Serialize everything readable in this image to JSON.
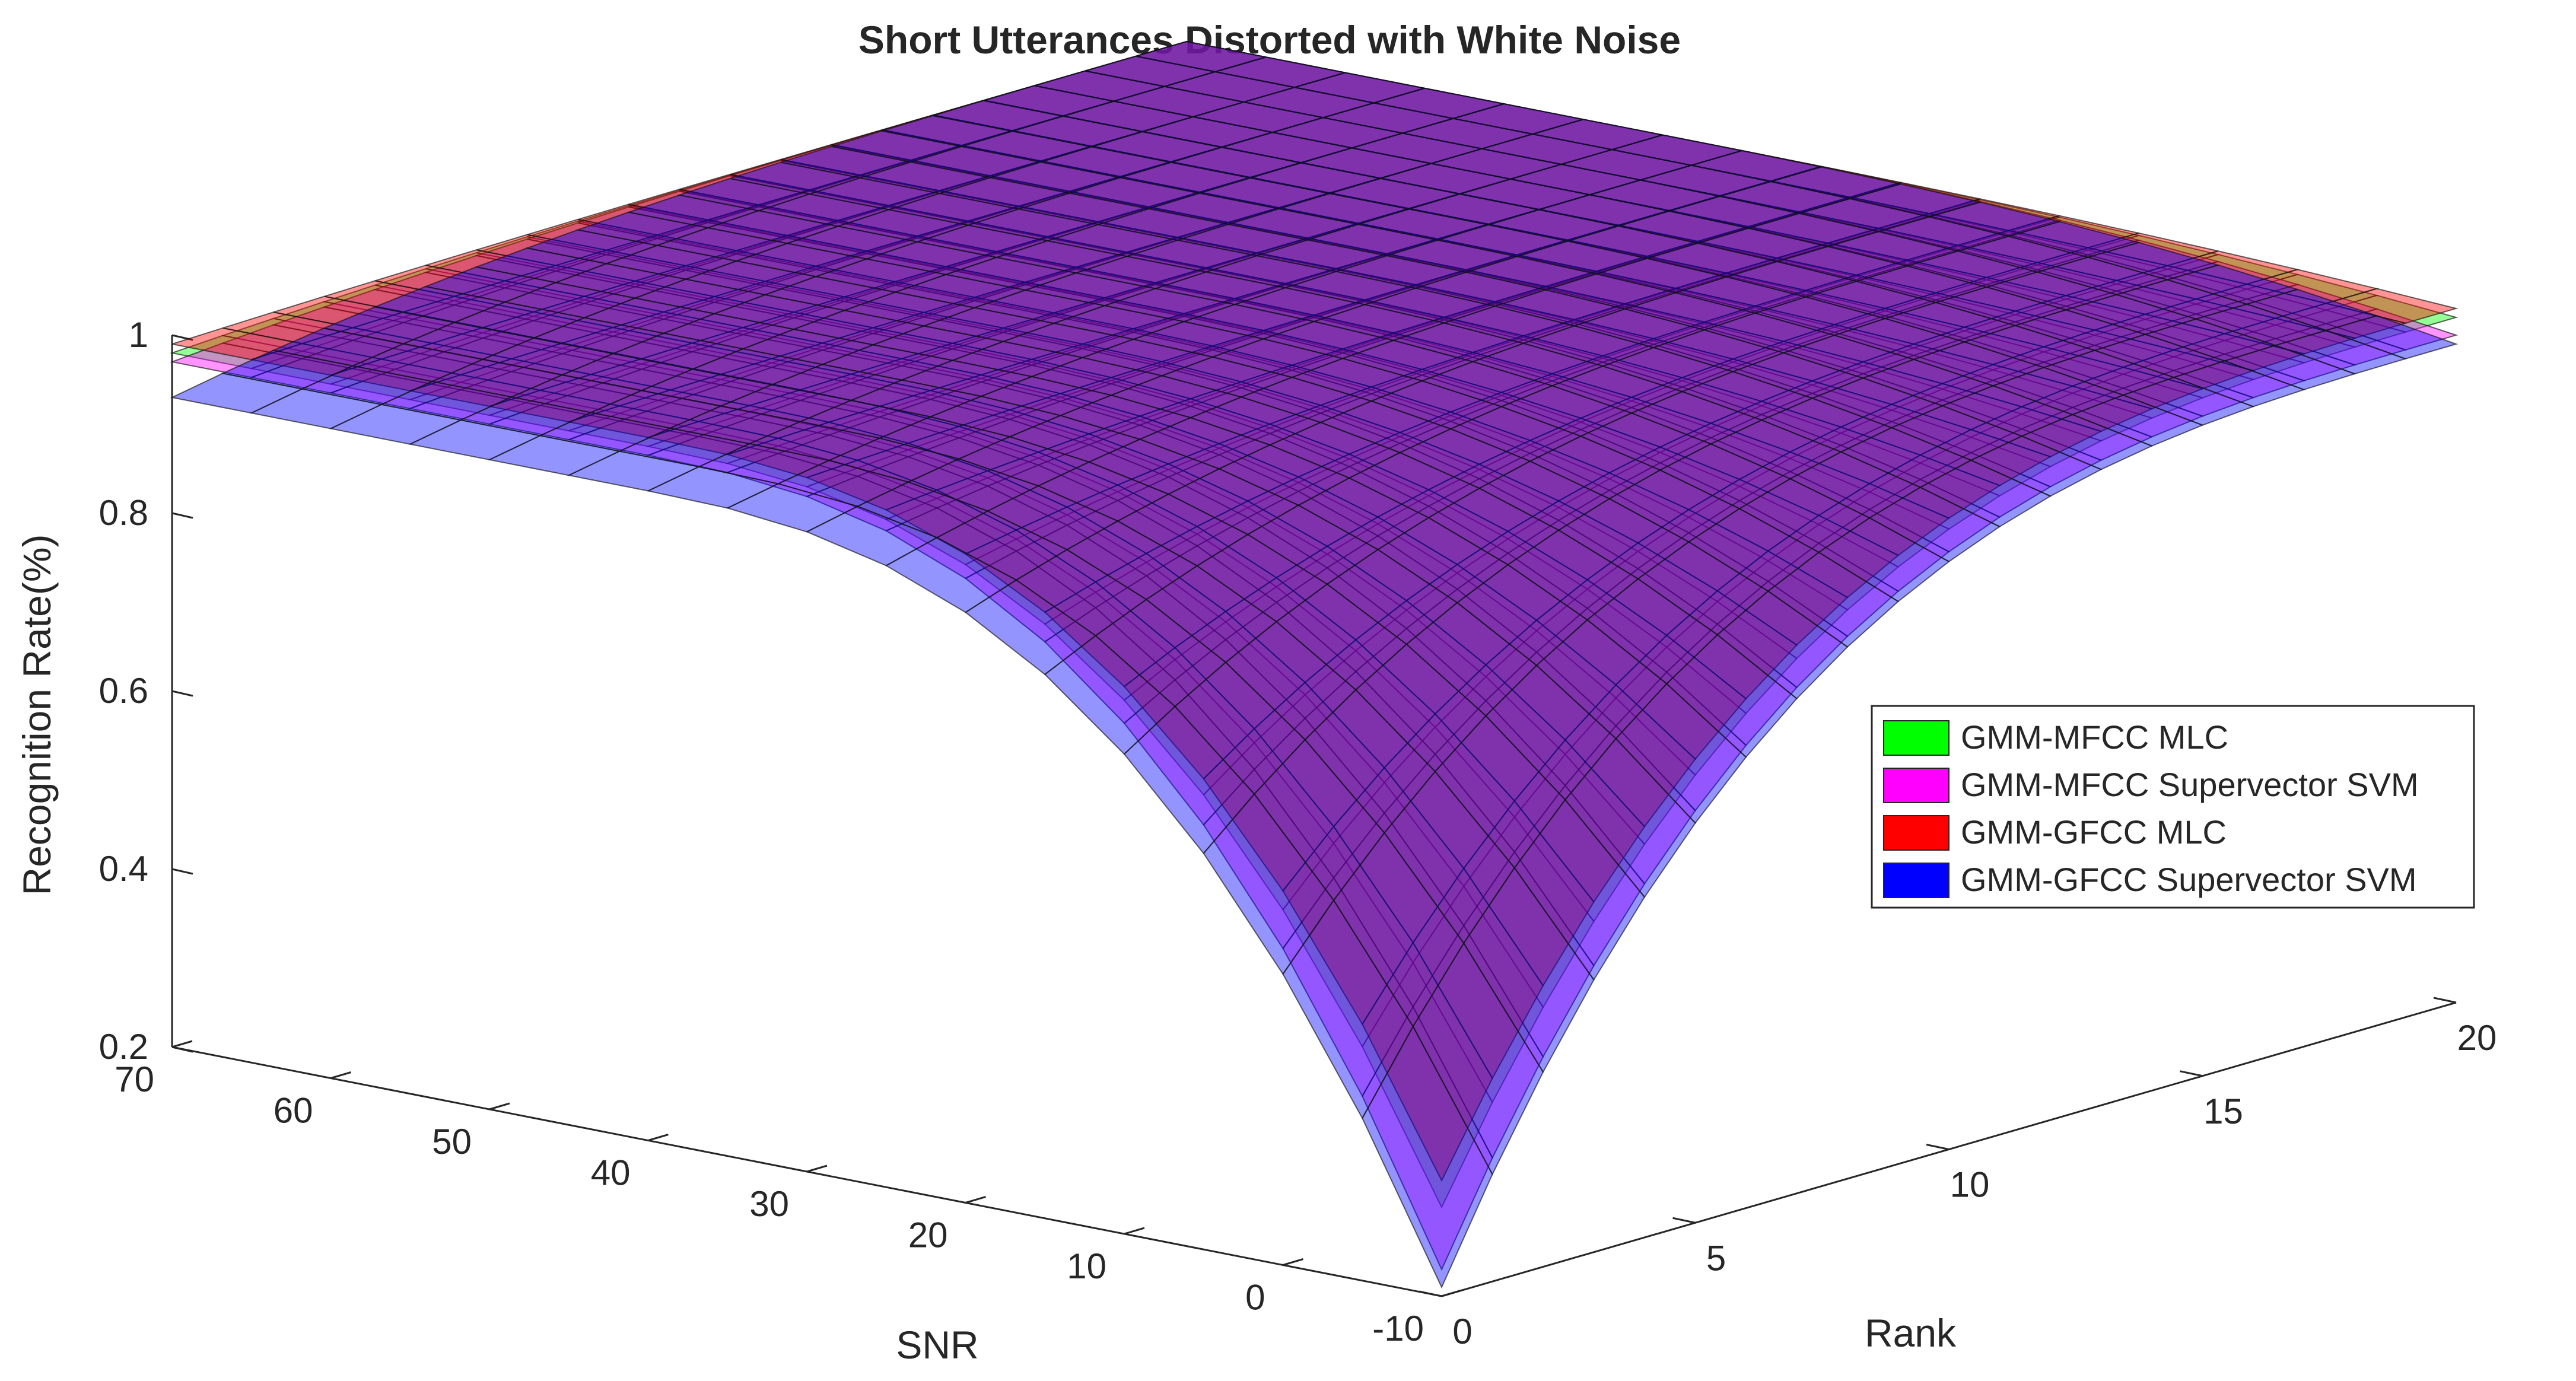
{
  "chart_data": {
    "type": "surface3d",
    "title": "Short Utterances Distorted with White Noise",
    "xlabel": "Rank",
    "ylabel": "SNR",
    "zlabel": "Recognition Rate(%)",
    "xlim": [
      0,
      20
    ],
    "ylim": [
      -10,
      70
    ],
    "zlim": [
      0.2,
      1
    ],
    "x_ticks": [
      "0",
      "5",
      "10",
      "15",
      "20"
    ],
    "y_ticks": [
      "-10",
      "0",
      "10",
      "20",
      "30",
      "40",
      "50",
      "60",
      "70"
    ],
    "z_ticks": [
      "0.2",
      "0.4",
      "0.6",
      "0.8",
      "1"
    ],
    "legend_position": "right",
    "series": [
      {
        "name": "GMM-MFCC MLC",
        "color": "#00ff00",
        "corner_values": {
          "rank_low_snr_low": 0.3,
          "rank_high_snr_low": 0.97,
          "rank_low_snr_high": 0.98,
          "rank_high_snr_high": 1.0
        }
      },
      {
        "name": "GMM-MFCC Supervector SVM",
        "color": "#ff00ff",
        "corner_values": {
          "rank_low_snr_low": 0.23,
          "rank_high_snr_low": 0.95,
          "rank_low_snr_high": 0.97,
          "rank_high_snr_high": 1.0
        }
      },
      {
        "name": "GMM-GFCC MLC",
        "color": "#ff0000",
        "corner_values": {
          "rank_low_snr_low": 0.33,
          "rank_high_snr_low": 0.98,
          "rank_low_snr_high": 0.99,
          "rank_high_snr_high": 1.0
        }
      },
      {
        "name": "GMM-GFCC Supervector SVM",
        "color": "#0000ff",
        "corner_values": {
          "rank_low_snr_low": 0.21,
          "rank_high_snr_low": 0.94,
          "rank_low_snr_high": 0.93,
          "rank_high_snr_high": 1.0
        }
      }
    ]
  }
}
